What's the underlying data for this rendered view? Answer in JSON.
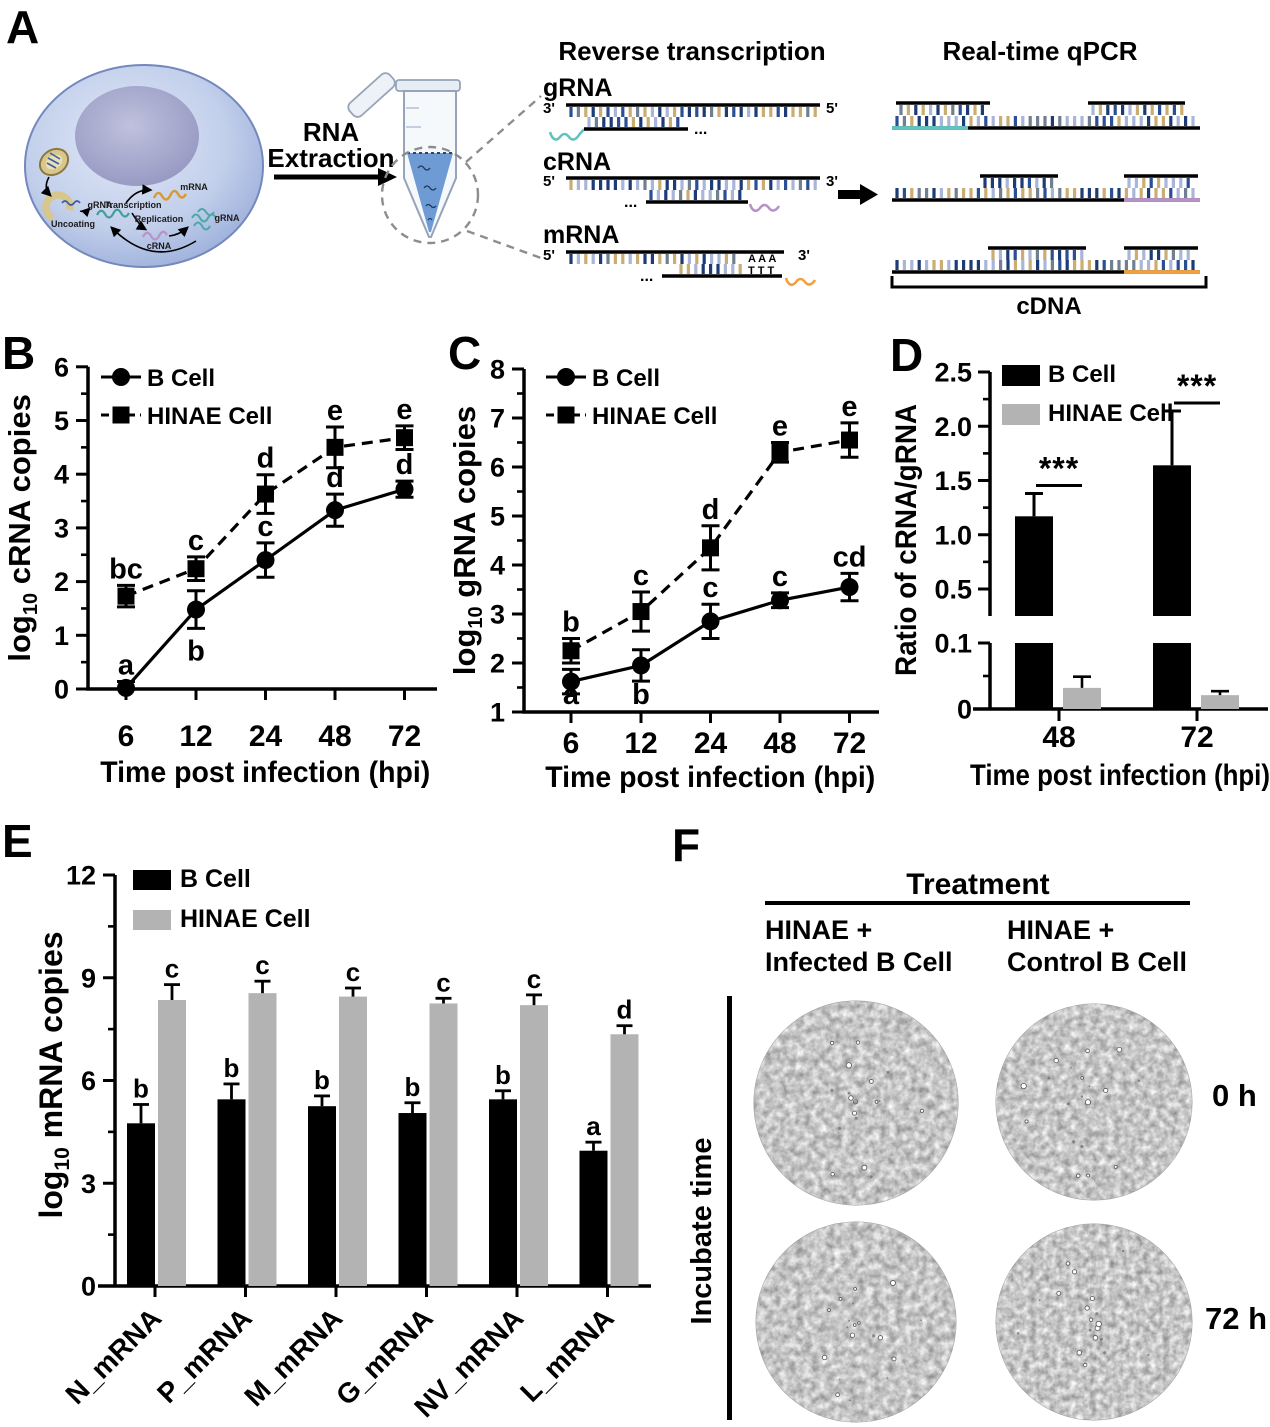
{
  "figure": {
    "panel_labels": {
      "a": "A",
      "b": "B",
      "c": "C",
      "d": "D",
      "e": "E",
      "f": "F"
    }
  },
  "panel_a": {
    "cell_labels": {
      "uncoating": "Uncoating",
      "grna": "gRNA",
      "transcription": "Transcription",
      "mrna": "mRNA",
      "replication": "Replication",
      "crna": "cRNA",
      "grna_product": "gRNA"
    },
    "extraction_line1": "RNA",
    "extraction_line2": "Extraction",
    "rt_heading": "Reverse transcription",
    "qpcr_heading": "Real-time qPCR",
    "rows": [
      {
        "label": "gRNA",
        "left_end": "3'",
        "right_end": "5'"
      },
      {
        "label": "cRNA",
        "left_end": "5'",
        "right_end": "3'"
      },
      {
        "label": "mRNA",
        "left_end": "5'",
        "right_end": "3'",
        "poly_a": "A A A",
        "poly_t": "T T T"
      }
    ],
    "dots": "...",
    "cdna_label": "cDNA"
  },
  "chart_data": [
    {
      "id": "B",
      "type": "line",
      "xlabel": "Time post infection (hpi)",
      "ylabel": {
        "prefix": "log",
        "sub": "10",
        "rest": " cRNA copies"
      },
      "categories": [
        "6",
        "12",
        "24",
        "48",
        "72"
      ],
      "ylim": [
        0,
        6
      ],
      "ytick_step": 1,
      "yminor_step": 0.5,
      "grid": false,
      "legend_position": "top-left",
      "series": [
        {
          "name": "B Cell",
          "marker": "circle",
          "dashed": false,
          "values": [
            0.02,
            1.48,
            2.4,
            3.33,
            3.72
          ],
          "errors": [
            0.12,
            0.35,
            0.32,
            0.3,
            0.15
          ],
          "letters": [
            "a",
            "b",
            "c",
            "d",
            "d"
          ],
          "letter_side": [
            "above",
            "below",
            "above",
            "above",
            "above"
          ]
        },
        {
          "name": "HINAE Cell",
          "marker": "square",
          "dashed": true,
          "values": [
            1.73,
            2.24,
            3.63,
            4.5,
            4.68
          ],
          "errors": [
            0.2,
            0.22,
            0.36,
            0.38,
            0.22
          ],
          "letters": [
            "bc",
            "c",
            "d",
            "e",
            "e"
          ],
          "letter_side": [
            "above",
            "above",
            "above",
            "above",
            "above"
          ]
        }
      ]
    },
    {
      "id": "C",
      "type": "line",
      "xlabel": "Time post infection (hpi)",
      "ylabel": {
        "prefix": "log",
        "sub": "10",
        "rest": " gRNA copies"
      },
      "categories": [
        "6",
        "12",
        "24",
        "48",
        "72"
      ],
      "ylim": [
        1,
        8
      ],
      "ytick_step": 1,
      "yminor_step": 0.5,
      "grid": false,
      "legend_position": "top-left",
      "series": [
        {
          "name": "B Cell",
          "marker": "circle",
          "dashed": false,
          "values": [
            1.62,
            1.95,
            2.85,
            3.28,
            3.55
          ],
          "errors": [
            0.25,
            0.32,
            0.35,
            0.15,
            0.28
          ],
          "letters": [
            "a",
            "b",
            "c",
            "c",
            "cd"
          ],
          "letter_side": [
            "below",
            "below",
            "above",
            "above",
            "above"
          ]
        },
        {
          "name": "HINAE Cell",
          "marker": "square",
          "dashed": true,
          "values": [
            2.25,
            3.05,
            4.35,
            6.3,
            6.55
          ],
          "errors": [
            0.25,
            0.4,
            0.45,
            0.2,
            0.35
          ],
          "letters": [
            "b",
            "c",
            "d",
            "e",
            "e"
          ],
          "letter_side": [
            "above",
            "above",
            "above",
            "above",
            "above"
          ]
        }
      ]
    },
    {
      "id": "D",
      "type": "bar",
      "subtype": "grouped-bar-broken-axis",
      "xlabel": "Time post infection (hpi)",
      "ylabel": "Ratio of cRNA/gRNA",
      "categories": [
        "48",
        "72"
      ],
      "axis_upper": {
        "range_shown": [
          0.25,
          2.5
        ],
        "tick_values": [
          0.5,
          1.0,
          1.5,
          2.0,
          2.5
        ]
      },
      "axis_lower": {
        "range": [
          0,
          0.1
        ],
        "tick_values": [
          0,
          0.1
        ]
      },
      "legend_position": "top-left",
      "series": [
        {
          "name": "B Cell",
          "color": "#000000",
          "values": [
            1.17,
            1.64
          ],
          "errors": [
            0.21,
            0.5
          ]
        },
        {
          "name": "HINAE Cell",
          "color": "#b3b3b3",
          "values": [
            0.032,
            0.021
          ],
          "errors": [
            0.017,
            0.006
          ]
        }
      ],
      "significance": [
        "***",
        "***"
      ]
    },
    {
      "id": "E",
      "type": "bar",
      "subtype": "grouped-bar",
      "xlabel": "",
      "ylabel": {
        "prefix": "log",
        "sub": "10",
        "rest": " mRNA copies"
      },
      "categories": [
        "N_mRNA",
        "P_mRNA",
        "M_mRNA",
        "G_mRNA",
        "NV_mRNA",
        "L_mRNA"
      ],
      "ylim": [
        0,
        12
      ],
      "ytick_values": [
        0,
        3,
        6,
        9,
        12
      ],
      "yminor_step": 1.5,
      "legend_position": "top-left",
      "series": [
        {
          "name": "B Cell",
          "color": "#000000",
          "values": [
            4.75,
            5.45,
            5.25,
            5.05,
            5.45,
            3.95
          ],
          "errors": [
            0.55,
            0.45,
            0.3,
            0.3,
            0.25,
            0.25
          ],
          "letters": [
            "b",
            "b",
            "b",
            "b",
            "b",
            "a"
          ]
        },
        {
          "name": "HINAE Cell",
          "color": "#b3b3b3",
          "values": [
            8.35,
            8.55,
            8.45,
            8.25,
            8.2,
            7.35
          ],
          "errors": [
            0.45,
            0.35,
            0.25,
            0.15,
            0.3,
            0.25
          ],
          "letters": [
            "c",
            "c",
            "c",
            "c",
            "c",
            "d"
          ]
        }
      ]
    }
  ],
  "panel_f": {
    "title": "Treatment",
    "columns": [
      {
        "line1": "HINAE +",
        "line2": "Infected B Cell"
      },
      {
        "line1": "HINAE +",
        "line2": "Control B Cell"
      }
    ],
    "row_axis_label": "Incubate time",
    "row_labels": [
      "0 h",
      "72 h"
    ]
  }
}
